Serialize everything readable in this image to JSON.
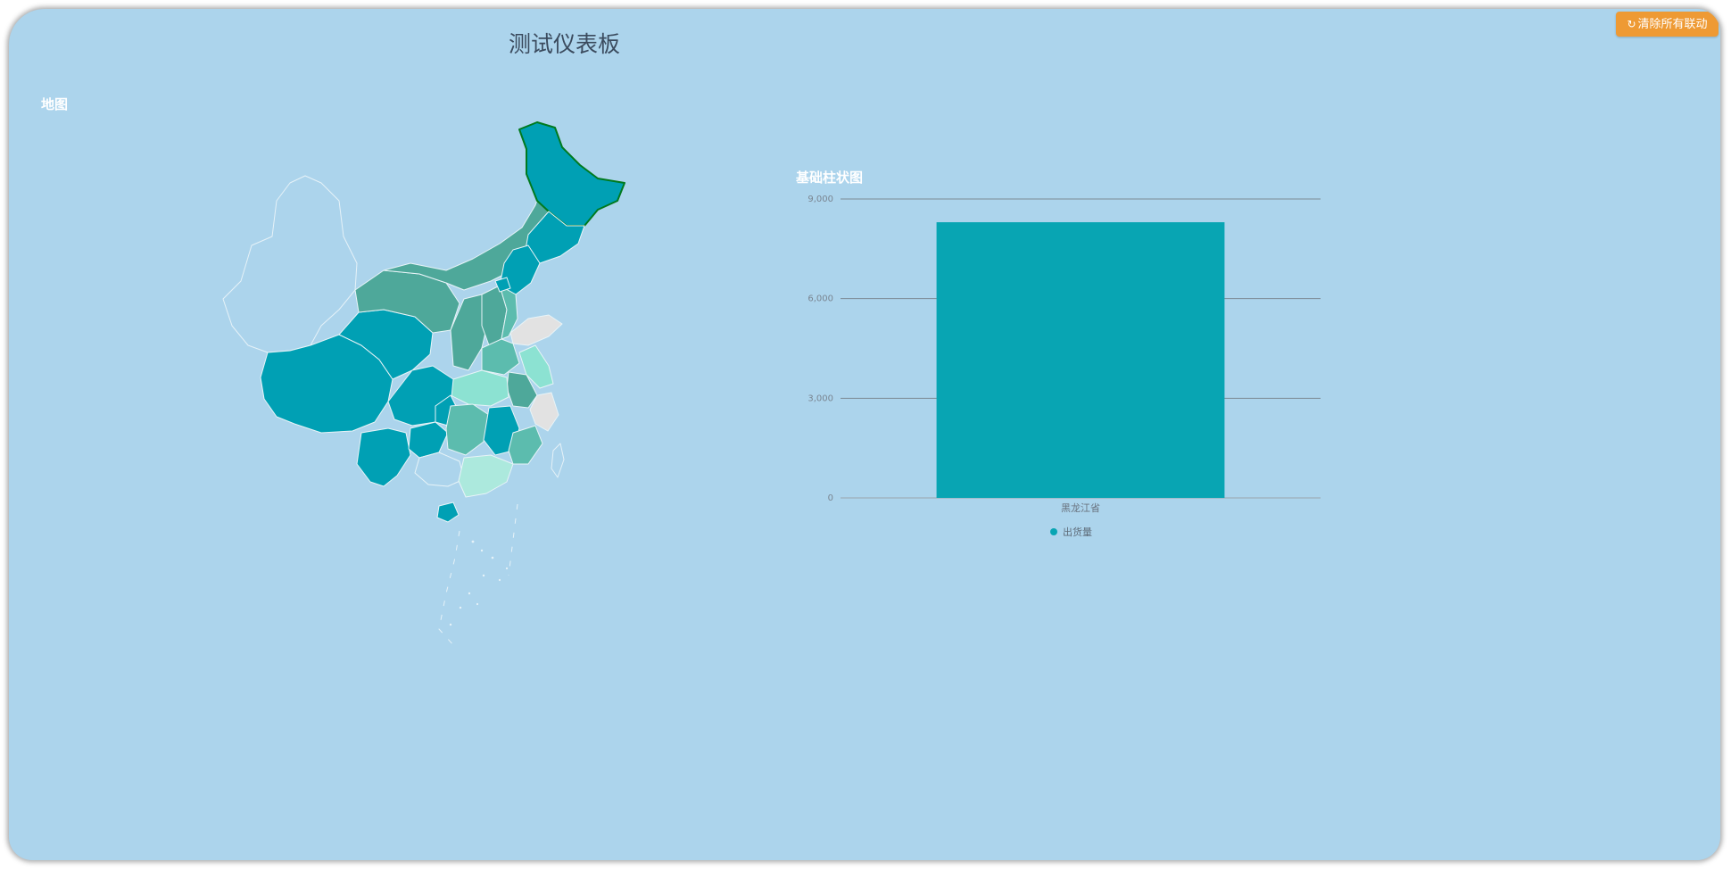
{
  "dashboard": {
    "title": "测试仪表板",
    "clear_button_label": "清除所有联动",
    "clear_button_icon": "refresh-icon"
  },
  "map_panel": {
    "title": "地图",
    "colors": {
      "dark_teal": "#00a0b4",
      "medium_teal": "#4ea89a",
      "light_teal": "#5cbcae",
      "pale_teal": "#8ce2d2",
      "very_pale_teal": "#ace9dd",
      "no_data": "#e2e2e2",
      "selected_border": "#007a1e"
    }
  },
  "bar_panel": {
    "title": "基础柱状图",
    "bar_color": "#08a5b3"
  },
  "chart_data": {
    "type": "bar",
    "title": "基础柱状图",
    "categories": [
      "黑龙江省"
    ],
    "series": [
      {
        "name": "出货量",
        "values": [
          8300
        ]
      }
    ],
    "yticks": [
      "0",
      "3,000",
      "6,000",
      "9,000"
    ],
    "ylim": [
      0,
      9000
    ],
    "grid": true,
    "legend": "bottom"
  }
}
